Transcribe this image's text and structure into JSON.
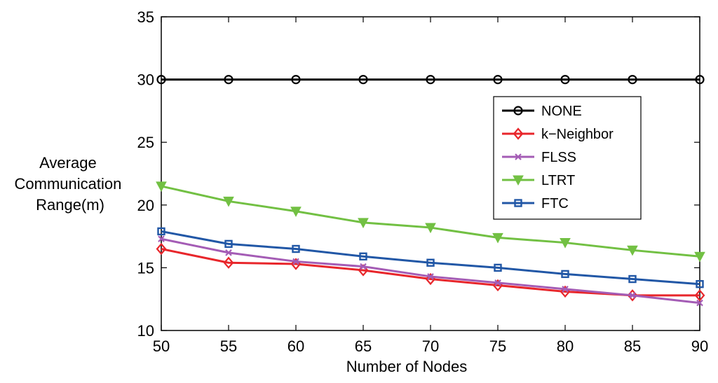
{
  "chart_data": {
    "type": "line",
    "title": "",
    "xlabel": "Number of Nodes",
    "ylabel_lines": [
      "Average",
      "Communication",
      "Range(m)"
    ],
    "x": [
      50,
      55,
      60,
      65,
      70,
      75,
      80,
      85,
      90
    ],
    "xlim": [
      50,
      90
    ],
    "ylim": [
      10,
      35
    ],
    "xticks": [
      50,
      55,
      60,
      65,
      70,
      75,
      80,
      85,
      90
    ],
    "yticks": [
      10,
      15,
      20,
      25,
      30,
      35
    ],
    "grid": false,
    "legend_position": "top-right",
    "series": [
      {
        "name": "NONE",
        "color": "#000000",
        "marker": "circle",
        "values": [
          30,
          30,
          30,
          30,
          30,
          30,
          30,
          30,
          30
        ]
      },
      {
        "name": "k−Neighbor",
        "color": "#e8262b",
        "marker": "diamond",
        "values": [
          16.5,
          15.4,
          15.3,
          14.8,
          14.1,
          13.6,
          13.1,
          12.8,
          12.8
        ]
      },
      {
        "name": "FLSS",
        "color": "#a45cb5",
        "marker": "x",
        "values": [
          17.3,
          16.2,
          15.5,
          15.1,
          14.3,
          13.8,
          13.3,
          12.8,
          12.2
        ]
      },
      {
        "name": "LTRT",
        "color": "#72c043",
        "marker": "triangle-down",
        "values": [
          21.5,
          20.3,
          19.5,
          18.6,
          18.2,
          17.4,
          17.0,
          16.4,
          15.9
        ]
      },
      {
        "name": "FTC",
        "color": "#2157a6",
        "marker": "square",
        "values": [
          17.9,
          16.9,
          16.5,
          15.9,
          15.4,
          15.0,
          14.5,
          14.1,
          13.7
        ]
      }
    ]
  }
}
